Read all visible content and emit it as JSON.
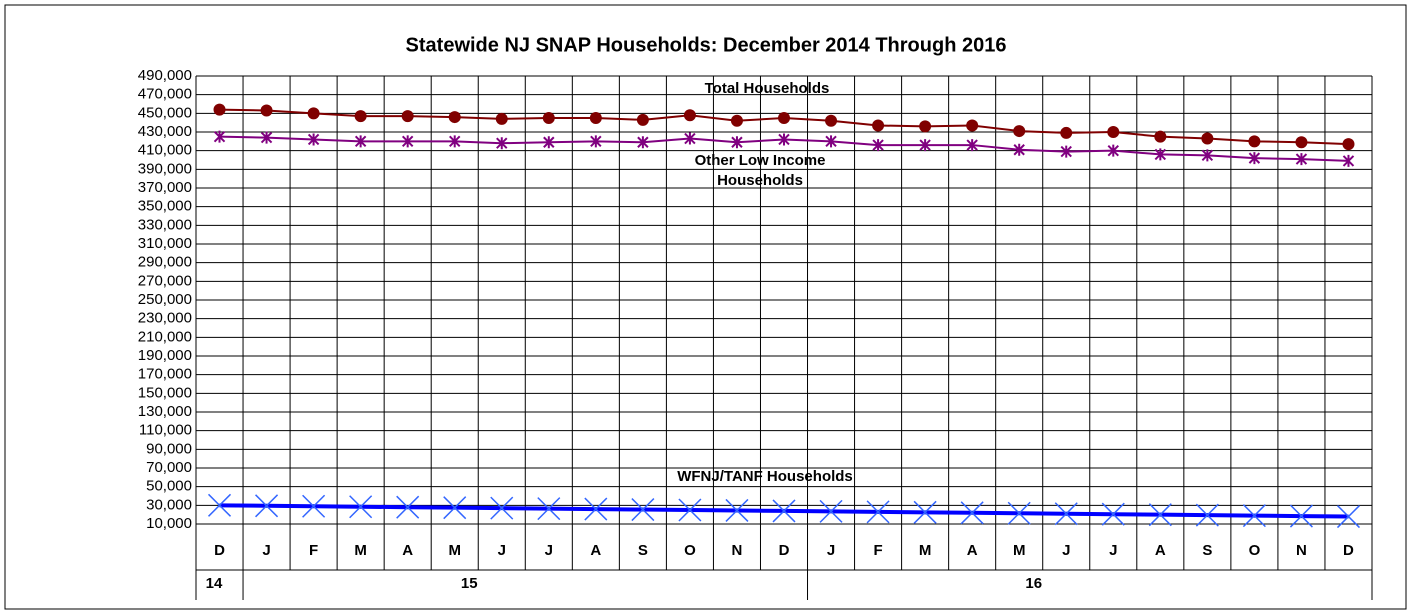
{
  "chart_data": {
    "type": "line",
    "title": "Statewide NJ SNAP Households: December 2014 Through 2016",
    "categories": [
      "D",
      "J",
      "F",
      "M",
      "A",
      "M",
      "J",
      "J",
      "A",
      "S",
      "O",
      "N",
      "D",
      "J",
      "F",
      "M",
      "A",
      "M",
      "J",
      "J",
      "A",
      "S",
      "O",
      "N",
      "D"
    ],
    "years": [
      "14",
      "15",
      null,
      null,
      null,
      null,
      null,
      null,
      null,
      null,
      null,
      null,
      null,
      "16",
      null,
      null,
      null,
      null,
      null,
      null,
      null,
      null,
      null,
      null,
      null
    ],
    "series": [
      {
        "name": "Total Households",
        "color": "#800000",
        "marker": "circle",
        "values": [
          454000,
          453000,
          450000,
          447000,
          447000,
          446000,
          444000,
          445000,
          445000,
          443000,
          448000,
          442000,
          445000,
          442000,
          437000,
          436000,
          437000,
          431000,
          429000,
          430000,
          425000,
          423000,
          420000,
          419000,
          417000
        ]
      },
      {
        "name": "Other Low Income Households",
        "color": "#800080",
        "marker": "asterisk",
        "values": [
          425000,
          424000,
          422000,
          420000,
          420000,
          420000,
          418000,
          419000,
          420000,
          419000,
          423000,
          419000,
          422000,
          420000,
          416000,
          416000,
          416000,
          411000,
          409000,
          410000,
          406000,
          405000,
          402000,
          401000,
          399000
        ]
      },
      {
        "name": "WFNJ/TANF Households",
        "color": "#0000ff",
        "marker_color": "#3366ff",
        "marker": "x",
        "values": [
          30000,
          29500,
          29000,
          28500,
          28000,
          27500,
          27000,
          26500,
          26000,
          25500,
          25000,
          24500,
          24000,
          23500,
          23000,
          22500,
          22000,
          21500,
          21000,
          20500,
          20000,
          19500,
          19000,
          18500,
          18000
        ]
      }
    ],
    "ylim": [
      10000,
      490000
    ],
    "yticks": [
      {
        "value": 10000,
        "label": "10,000"
      },
      {
        "value": 30000,
        "label": "30,000"
      },
      {
        "value": 50000,
        "label": "50,000"
      },
      {
        "value": 70000,
        "label": "70,000"
      },
      {
        "value": 90000,
        "label": "90,000"
      },
      {
        "value": 110000,
        "label": "110,000"
      },
      {
        "value": 130000,
        "label": "130,000"
      },
      {
        "value": 150000,
        "label": "150,000"
      },
      {
        "value": 170000,
        "label": "170,000"
      },
      {
        "value": 190000,
        "label": "190,000"
      },
      {
        "value": 210000,
        "label": "210,000"
      },
      {
        "value": 230000,
        "label": "230,000"
      },
      {
        "value": 250000,
        "label": "250,000"
      },
      {
        "value": 270000,
        "label": "270,000"
      },
      {
        "value": 290000,
        "label": "290,000"
      },
      {
        "value": 310000,
        "label": "310,000"
      },
      {
        "value": 330000,
        "label": "330,000"
      },
      {
        "value": 350000,
        "label": "350,000"
      },
      {
        "value": 370000,
        "label": "370,000"
      },
      {
        "value": 390000,
        "label": "390,000"
      },
      {
        "value": 410000,
        "label": "410,000"
      },
      {
        "value": 430000,
        "label": "430,000"
      },
      {
        "value": 450000,
        "label": "450,000"
      },
      {
        "value": 470000,
        "label": "470,000"
      },
      {
        "value": 490000,
        "label": "490,000"
      }
    ],
    "grid": true
  }
}
